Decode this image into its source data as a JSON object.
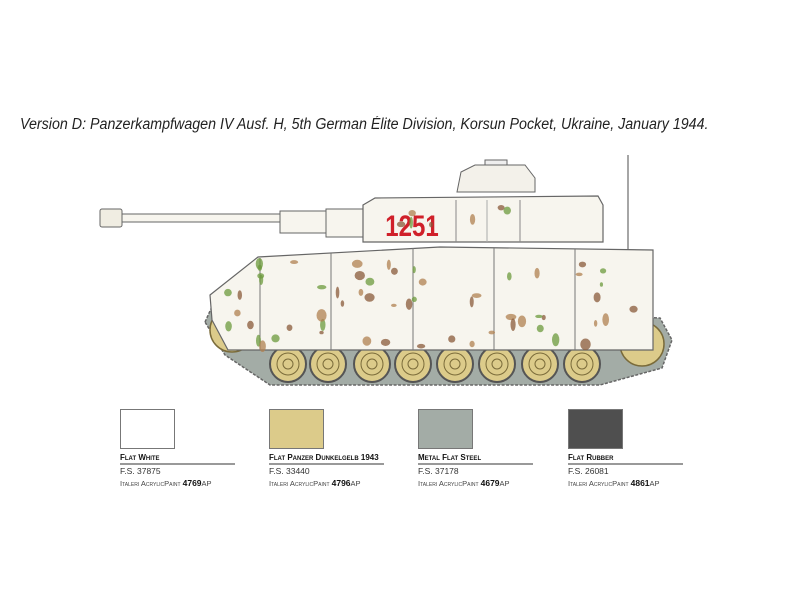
{
  "caption": "Version D: Panzerkampfwagen IV Ausf. H, 5th German Élite Division, Korsun Pocket, Ukraine, January 1944.",
  "tank": {
    "turret_number": "1251",
    "number_color": "#d0202a",
    "base_color": "#f7f5ee",
    "wheel_color": "#dccb8a",
    "track_color": "#a3aca6"
  },
  "paints": [
    {
      "name": "Flat White",
      "fs": "F.S. 37875",
      "brand": "Italeri AcrylicPaint",
      "code": "4769",
      "suffix": "AP",
      "color": "#ffffff"
    },
    {
      "name": "Flat Panzer Dunkelgelb 1943",
      "fs": "F.S. 33440",
      "brand": "Italeri AcrylicPaint",
      "code": "4796",
      "suffix": "AP",
      "color": "#dccb8a"
    },
    {
      "name": "Metal Flat Steel",
      "fs": "F.S. 37178",
      "brand": "Italeri AcrylicPaint",
      "code": "4679",
      "suffix": "AP",
      "color": "#a3aca6"
    },
    {
      "name": "Flat Rubber",
      "fs": "F.S. 26081",
      "brand": "Italeri AcrylicPaint",
      "code": "4861",
      "suffix": "AP",
      "color": "#4f4f4f"
    }
  ]
}
